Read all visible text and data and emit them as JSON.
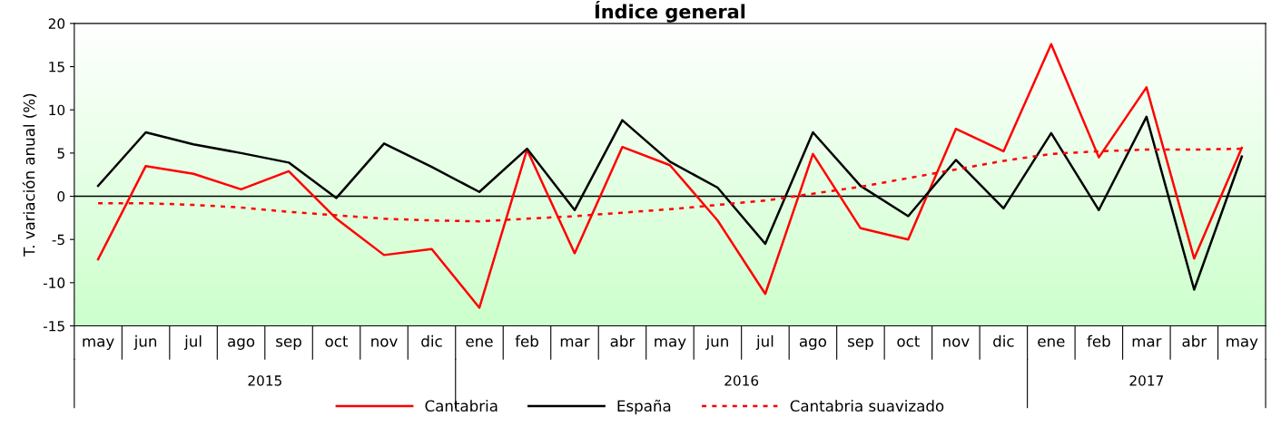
{
  "chart_data": {
    "type": "line",
    "title": "Índice general",
    "ylabel": "T. variación anual (%)",
    "categories": [
      "may",
      "jun",
      "jul",
      "ago",
      "sep",
      "oct",
      "nov",
      "dic",
      "ene",
      "feb",
      "mar",
      "abr",
      "may",
      "jun",
      "jul",
      "ago",
      "sep",
      "oct",
      "nov",
      "dic",
      "ene",
      "feb",
      "mar",
      "abr",
      "may"
    ],
    "series": [
      {
        "name": "Cantabria",
        "color": "#ff0000",
        "line_style": "solid",
        "values": [
          -7.3,
          3.5,
          2.6,
          0.8,
          2.9,
          -2.6,
          -6.8,
          -6.1,
          -12.9,
          5.4,
          -6.6,
          5.7,
          3.6,
          -2.8,
          -11.3,
          4.9,
          -3.7,
          -5.0,
          7.8,
          5.2,
          17.6,
          4.5,
          12.6,
          -7.2,
          5.6
        ]
      },
      {
        "name": "España",
        "color": "#000000",
        "line_style": "solid",
        "values": [
          1.2,
          7.4,
          6.0,
          5.0,
          3.9,
          -0.2,
          6.1,
          3.4,
          0.5,
          5.5,
          -1.6,
          8.8,
          4.0,
          1.0,
          -5.5,
          7.4,
          1.2,
          -2.3,
          4.2,
          -1.4,
          7.3,
          -1.6,
          9.2,
          -10.8,
          4.6
        ]
      },
      {
        "name": "Cantabria suavizado",
        "color": "#ff0000",
        "line_style": "dotted",
        "values": [
          -0.8,
          -0.8,
          -1.0,
          -1.3,
          -1.8,
          -2.2,
          -2.6,
          -2.8,
          -2.9,
          -2.6,
          -2.3,
          -1.9,
          -1.5,
          -1.0,
          -0.5,
          0.3,
          1.1,
          2.1,
          3.1,
          4.1,
          4.9,
          5.2,
          5.4,
          5.4,
          5.5
        ]
      }
    ],
    "ylim": [
      -15,
      20
    ],
    "yticks": [
      -15,
      -10,
      -5,
      0,
      5,
      10,
      15,
      20
    ],
    "ref_lines": [
      {
        "axis": "y",
        "value": 0,
        "color": "#000000"
      }
    ],
    "annotations": [
      "2015",
      "2016",
      "2017"
    ],
    "grid": false,
    "legend": "bottom",
    "marker": "none"
  }
}
